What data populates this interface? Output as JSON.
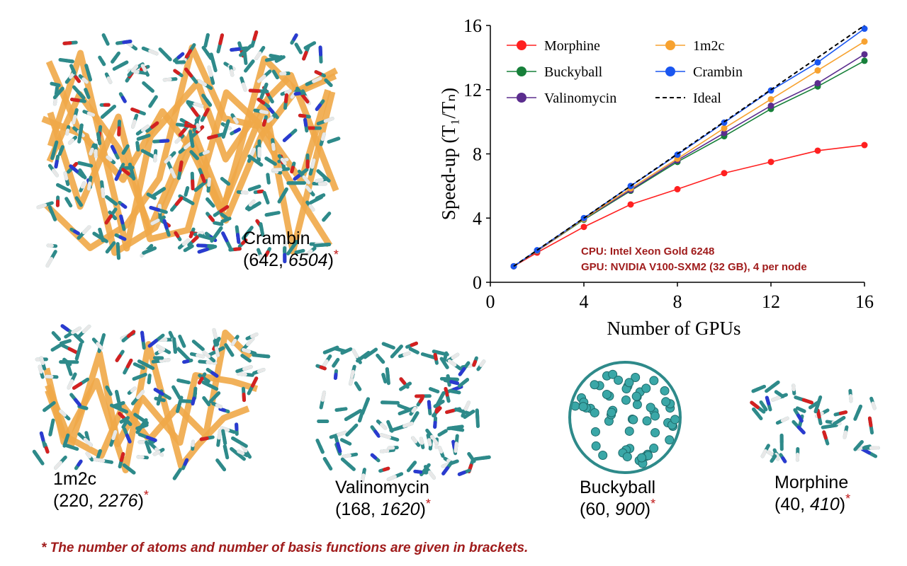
{
  "chart_data": {
    "type": "line",
    "x_label": "Number of GPUs",
    "y_label": "Speed-up (T₁/Tₙ)",
    "x": [
      1,
      2,
      4,
      6,
      8,
      10,
      12,
      14,
      16
    ],
    "series": [
      {
        "name": "Morphine",
        "color": "#ff2020",
        "values": [
          1,
          1.85,
          3.45,
          4.85,
          5.8,
          6.8,
          7.5,
          8.2,
          8.55
        ]
      },
      {
        "name": "Buckyball",
        "color": "#17803a",
        "values": [
          1,
          1.95,
          3.9,
          5.7,
          7.5,
          9.1,
          10.8,
          12.2,
          13.8
        ]
      },
      {
        "name": "Valinomycin",
        "color": "#5b2d8e",
        "values": [
          1,
          1.95,
          3.95,
          5.75,
          7.6,
          9.3,
          11.0,
          12.4,
          14.2
        ]
      },
      {
        "name": "1m2c",
        "color": "#f7a230",
        "values": [
          1,
          1.97,
          3.95,
          5.85,
          7.7,
          9.6,
          11.4,
          13.2,
          15.0
        ]
      },
      {
        "name": "Crambin",
        "color": "#1a56f0",
        "values": [
          1,
          2.0,
          4.0,
          6.0,
          7.95,
          9.95,
          11.95,
          13.7,
          15.8
        ]
      },
      {
        "name": "Ideal",
        "color": "#000000",
        "dashed": true,
        "markers": false,
        "values": [
          1,
          2,
          4,
          6,
          8,
          10,
          12,
          14,
          16
        ]
      }
    ],
    "xlim": [
      0,
      16
    ],
    "xticks": [
      0,
      4,
      8,
      12,
      16
    ],
    "ylim": [
      0,
      16
    ],
    "yticks": [
      0,
      4,
      8,
      12,
      16
    ],
    "grid": false,
    "legend": "upper left",
    "annotations": [
      "CPU: Intel Xeon Gold 6248",
      "GPU: NVIDIA V100-SXM2 (32 GB), 4 per node"
    ]
  },
  "molecules": [
    {
      "name": "Crambin",
      "atoms": 642,
      "basis_functions": 6504
    },
    {
      "name": "1m2c",
      "atoms": 220,
      "basis_functions": 2276
    },
    {
      "name": "Valinomycin",
      "atoms": 168,
      "basis_functions": 1620
    },
    {
      "name": "Buckyball",
      "atoms": 60,
      "basis_functions": 900
    },
    {
      "name": "Morphine",
      "atoms": 40,
      "basis_functions": 410
    }
  ],
  "note_marker": "*",
  "footnote": "* The number of atoms and number of basis functions are given in brackets."
}
